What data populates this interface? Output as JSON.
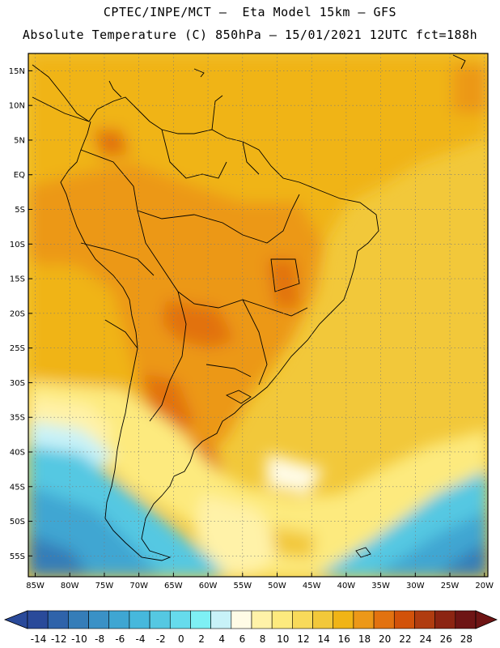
{
  "header": {
    "line1": "CPTEC/INPE/MCT —  Eta Model 15km — GFS",
    "line2": "Absolute Temperature (C) 850hPa — 15/01/2021 12UTC fct=188h"
  },
  "map": {
    "lat_labels": [
      "15N",
      "10N",
      "5N",
      "EQ",
      "5S",
      "10S",
      "15S",
      "20S",
      "25S",
      "30S",
      "35S",
      "40S",
      "45S",
      "50S",
      "55S"
    ],
    "lat_values": [
      15,
      10,
      5,
      0,
      -5,
      -10,
      -15,
      -20,
      -25,
      -30,
      -35,
      -40,
      -45,
      -50,
      -55
    ],
    "lon_labels": [
      "85W",
      "80W",
      "75W",
      "70W",
      "65W",
      "60W",
      "55W",
      "50W",
      "45W",
      "40W",
      "35W",
      "30W",
      "25W",
      "20W"
    ],
    "lon_values": [
      -85,
      -80,
      -75,
      -70,
      -65,
      -60,
      -55,
      -50,
      -45,
      -40,
      -35,
      -30,
      -25,
      -20
    ],
    "lat_range": [
      -58,
      17.5
    ],
    "lon_range": [
      -86,
      -19.5
    ]
  },
  "colorbar": {
    "labels": [
      "-14",
      "-12",
      "-10",
      "-8",
      "-6",
      "-4",
      "-2",
      "0",
      "2",
      "4",
      "6",
      "8",
      "10",
      "12",
      "14",
      "16",
      "18",
      "20",
      "22",
      "24",
      "26",
      "28"
    ],
    "colors": [
      "#2a4a9a",
      "#2f63aa",
      "#357db8",
      "#3a91c6",
      "#3fa6d2",
      "#46b8dc",
      "#55c8e2",
      "#66dbec",
      "#7ef0f4",
      "#c8f2f8",
      "#fffbe6",
      "#fff2a8",
      "#fdea7e",
      "#f8da5a",
      "#f2c83a",
      "#f0b416",
      "#ec9818",
      "#e27210",
      "#d2520a",
      "#b03c10",
      "#8c2412",
      "#6e1414"
    ],
    "unit": "C"
  }
}
